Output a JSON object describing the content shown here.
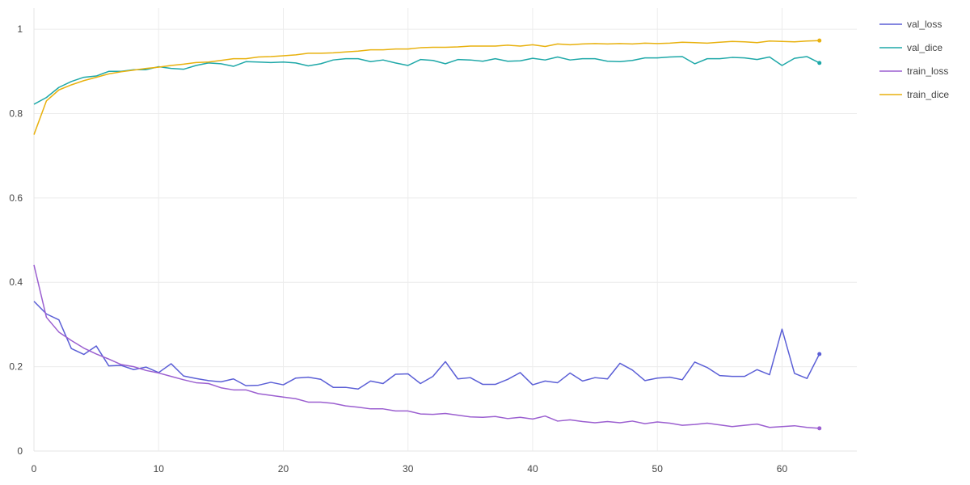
{
  "chart_data": {
    "type": "line",
    "xlim": [
      0,
      66
    ],
    "ylim": [
      0,
      1.05
    ],
    "x_ticks": [
      0,
      10,
      20,
      30,
      40,
      50,
      60
    ],
    "y_ticks": [
      0,
      0.2,
      0.4,
      0.6,
      0.8,
      1
    ],
    "grid": true,
    "legend": "top-right",
    "x": [
      0,
      1,
      2,
      3,
      4,
      5,
      6,
      7,
      8,
      9,
      10,
      11,
      12,
      13,
      14,
      15,
      16,
      17,
      18,
      19,
      20,
      21,
      22,
      23,
      24,
      25,
      26,
      27,
      28,
      29,
      30,
      31,
      32,
      33,
      34,
      35,
      36,
      37,
      38,
      39,
      40,
      41,
      42,
      43,
      44,
      45,
      46,
      47,
      48,
      49,
      50,
      51,
      52,
      53,
      54,
      55,
      56,
      57,
      58,
      59,
      60,
      61,
      62,
      63
    ],
    "series": [
      {
        "name": "val_loss",
        "color": "#5b5fd6",
        "values": [
          0.355,
          0.325,
          0.311,
          0.243,
          0.229,
          0.249,
          0.202,
          0.203,
          0.193,
          0.199,
          0.186,
          0.207,
          0.178,
          0.172,
          0.167,
          0.164,
          0.171,
          0.155,
          0.156,
          0.163,
          0.157,
          0.173,
          0.175,
          0.17,
          0.151,
          0.151,
          0.147,
          0.166,
          0.16,
          0.182,
          0.183,
          0.16,
          0.177,
          0.212,
          0.171,
          0.174,
          0.158,
          0.158,
          0.17,
          0.186,
          0.157,
          0.166,
          0.162,
          0.185,
          0.166,
          0.174,
          0.171,
          0.208,
          0.192,
          0.167,
          0.173,
          0.175,
          0.169,
          0.211,
          0.198,
          0.179,
          0.177,
          0.177,
          0.193,
          0.181,
          0.289,
          0.184,
          0.172,
          0.23
        ]
      },
      {
        "name": "val_dice",
        "color": "#1ea8a8",
        "values": [
          0.822,
          0.838,
          0.862,
          0.876,
          0.886,
          0.889,
          0.9,
          0.9,
          0.904,
          0.904,
          0.911,
          0.907,
          0.905,
          0.914,
          0.92,
          0.918,
          0.912,
          0.923,
          0.922,
          0.921,
          0.922,
          0.92,
          0.913,
          0.918,
          0.927,
          0.93,
          0.93,
          0.923,
          0.927,
          0.92,
          0.914,
          0.928,
          0.926,
          0.918,
          0.928,
          0.927,
          0.924,
          0.93,
          0.924,
          0.925,
          0.931,
          0.927,
          0.934,
          0.927,
          0.93,
          0.93,
          0.924,
          0.923,
          0.926,
          0.932,
          0.932,
          0.934,
          0.935,
          0.918,
          0.93,
          0.93,
          0.933,
          0.932,
          0.928,
          0.934,
          0.914,
          0.931,
          0.935,
          0.92
        ]
      },
      {
        "name": "train_loss",
        "color": "#9b5fd0",
        "values": [
          0.441,
          0.317,
          0.282,
          0.262,
          0.244,
          0.23,
          0.218,
          0.205,
          0.2,
          0.191,
          0.185,
          0.177,
          0.169,
          0.162,
          0.16,
          0.15,
          0.145,
          0.145,
          0.136,
          0.132,
          0.128,
          0.124,
          0.116,
          0.116,
          0.113,
          0.107,
          0.104,
          0.1,
          0.1,
          0.095,
          0.095,
          0.088,
          0.087,
          0.089,
          0.085,
          0.081,
          0.08,
          0.082,
          0.077,
          0.08,
          0.076,
          0.083,
          0.071,
          0.074,
          0.07,
          0.067,
          0.07,
          0.067,
          0.071,
          0.065,
          0.069,
          0.066,
          0.061,
          0.063,
          0.066,
          0.062,
          0.058,
          0.061,
          0.064,
          0.056,
          0.058,
          0.06,
          0.056,
          0.054
        ]
      },
      {
        "name": "train_dice",
        "color": "#e8b10e",
        "values": [
          0.75,
          0.83,
          0.856,
          0.868,
          0.878,
          0.886,
          0.894,
          0.899,
          0.903,
          0.907,
          0.91,
          0.914,
          0.917,
          0.921,
          0.922,
          0.926,
          0.93,
          0.93,
          0.934,
          0.935,
          0.937,
          0.939,
          0.943,
          0.943,
          0.944,
          0.946,
          0.948,
          0.951,
          0.951,
          0.953,
          0.953,
          0.956,
          0.957,
          0.957,
          0.958,
          0.96,
          0.96,
          0.96,
          0.962,
          0.96,
          0.963,
          0.959,
          0.965,
          0.963,
          0.965,
          0.966,
          0.965,
          0.966,
          0.965,
          0.967,
          0.966,
          0.967,
          0.969,
          0.968,
          0.967,
          0.969,
          0.971,
          0.97,
          0.968,
          0.972,
          0.971,
          0.97,
          0.972,
          0.973
        ]
      }
    ]
  }
}
